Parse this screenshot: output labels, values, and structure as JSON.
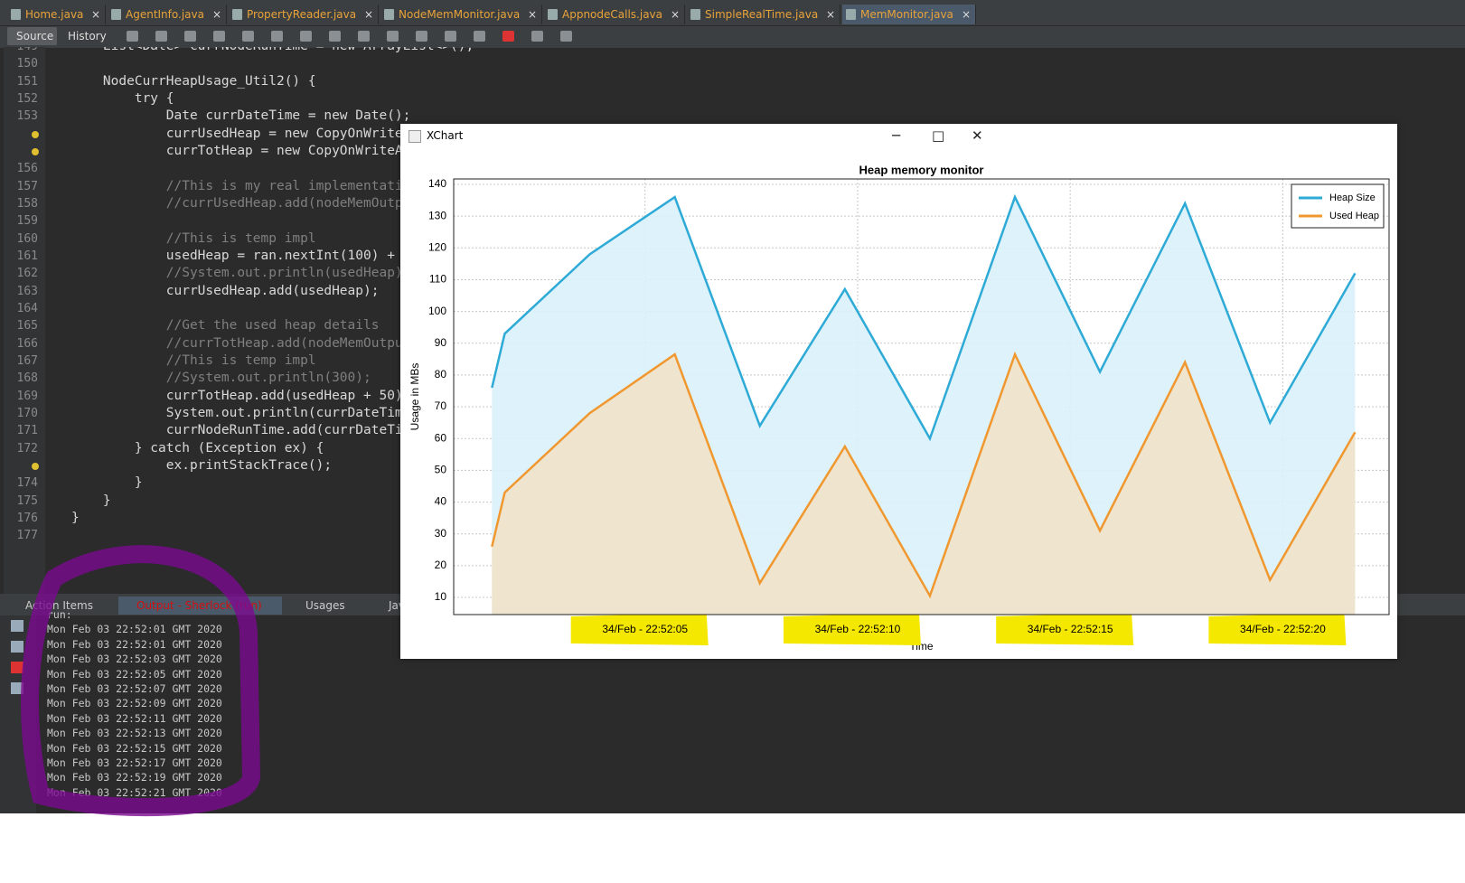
{
  "tabs": [
    "Home.java",
    "AgentInfo.java",
    "PropertyReader.java",
    "NodeMemMonitor.java",
    "AppnodeCalls.java",
    "SimpleRealTime.java",
    "MemMonitor.java"
  ],
  "toolbar": {
    "source": "Source",
    "history": "History"
  },
  "code": [
    {
      "number": "149",
      "text": "    List<Date> currNodeRunTime = new ArrayList<>();"
    },
    {
      "number": "150"
    },
    {
      "number": "151",
      "text": "    NodeCurrHeapUsage_Util2() {"
    },
    {
      "number": "152",
      "text": "        try {"
    },
    {
      "number": "153",
      "text": "            Date currDateTime = new Date();"
    },
    {
      "text": "            currUsedHeap = new CopyOnWrite"
    },
    {
      "text": "            currTotHeap = new CopyOnWriteA"
    },
    {
      "number": "156"
    },
    {
      "number": "157",
      "text": "            //This is my real implementati"
    },
    {
      "number": "158",
      "text": "            //currUsedHeap.add(nodeMemOutp"
    },
    {
      "number": "159"
    },
    {
      "number": "160",
      "text": "            //This is temp impl"
    },
    {
      "number": "161",
      "text": "            usedHeap = ran.nextInt(100) +"
    },
    {
      "number": "162",
      "text": "            //System.out.println(usedHeap)"
    },
    {
      "number": "163",
      "text": "            currUsedHeap.add(usedHeap);"
    },
    {
      "number": "164"
    },
    {
      "number": "165",
      "text": "            //Get the used heap details"
    },
    {
      "number": "166",
      "text": "            //currTotHeap.add(nodeMemOutpu"
    },
    {
      "number": "167",
      "text": "            //This is temp impl"
    },
    {
      "number": "168",
      "text": "            //System.out.println(300);"
    },
    {
      "number": "169",
      "text": "            currTotHeap.add(usedHeap + 50)"
    },
    {
      "number": "170",
      "text": "            System.out.println(currDateTim"
    },
    {
      "number": "171",
      "text": "            currNodeRunTime.add(currDateTi"
    },
    {
      "number": "172",
      "text": "        } catch (Exception ex) {"
    },
    {
      "text": "            ex.printStackTrace();"
    },
    {
      "number": "174",
      "text": "        }"
    },
    {
      "number": "175",
      "text": "    }"
    },
    {
      "number": "176",
      "text": "}"
    },
    {
      "number": "177"
    }
  ],
  "bottom_tabs": [
    "Action Items",
    "Output - Sherlock (run)",
    "Usages",
    "Java Call"
  ],
  "console": [
    "run:",
    "Mon Feb 03 22:52:01 GMT 2020",
    "Mon Feb 03 22:52:01 GMT 2020",
    "Mon Feb 03 22:52:03 GMT 2020",
    "Mon Feb 03 22:52:05 GMT 2020",
    "Mon Feb 03 22:52:07 GMT 2020",
    "Mon Feb 03 22:52:09 GMT 2020",
    "Mon Feb 03 22:52:11 GMT 2020",
    "Mon Feb 03 22:52:13 GMT 2020",
    "Mon Feb 03 22:52:15 GMT 2020",
    "Mon Feb 03 22:52:17 GMT 2020",
    "Mon Feb 03 22:52:19 GMT 2020",
    "Mon Feb 03 22:52:21 GMT 2020"
  ],
  "window_title": "XChart",
  "chart_data": {
    "type": "area",
    "title": "Heap memory monitor",
    "x_label": "Time",
    "y_label": "Usage in MBs",
    "x": [
      1.4,
      1.7,
      3.7,
      5.7,
      7.7,
      9.7,
      11.7,
      13.7,
      15.7,
      17.7,
      19.7,
      21.7
    ],
    "series": [
      {
        "name": "Heap Size",
        "color": "#2eaad6",
        "fill": "#d9f1fa",
        "values": [
          76,
          93,
          118,
          136,
          64,
          107,
          60,
          136,
          81,
          134,
          65,
          112
        ]
      },
      {
        "name": "Used Heap",
        "color": "#f0982f",
        "fill": "#f1e2c9",
        "values": [
          26,
          43,
          68,
          86.5,
          14.5,
          57.5,
          10.5,
          86.5,
          31,
          84,
          15.5,
          62
        ]
      }
    ],
    "xlim": [
      0.5,
      22.5
    ],
    "xticks": [
      {
        "value": 5,
        "label": "34/Feb - 22:52:05"
      },
      {
        "value": 10,
        "label": "34/Feb - 22:52:10"
      },
      {
        "value": 15,
        "label": "34/Feb - 22:52:15"
      },
      {
        "value": 20,
        "label": "34/Feb - 22:52:20"
      }
    ],
    "ylim": [
      4.6,
      141.7
    ],
    "yticks": [
      10,
      20,
      30,
      40,
      50,
      60,
      70,
      80,
      90,
      100,
      110,
      120,
      130,
      140
    ],
    "grid": true,
    "legend": "top-right"
  }
}
